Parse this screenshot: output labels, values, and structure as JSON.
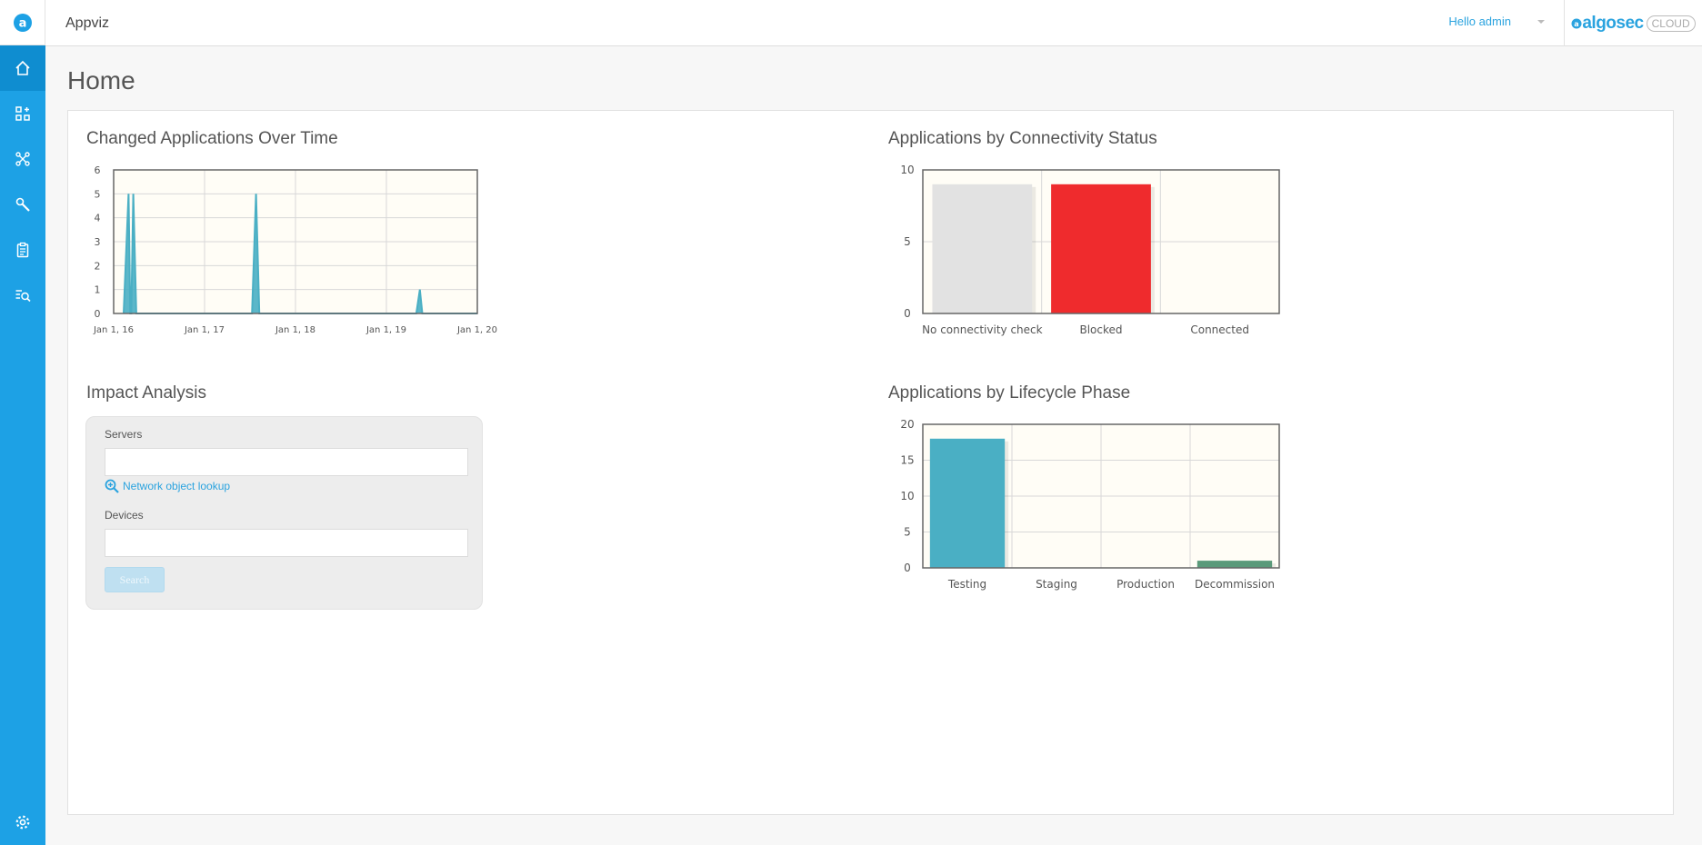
{
  "app": {
    "title": "Appviz"
  },
  "user": {
    "greeting": "Hello admin"
  },
  "brand": {
    "name": "algosec",
    "cloud": "CLOUD"
  },
  "sidebar": {
    "items": [
      {
        "icon": "home-icon",
        "active": true
      },
      {
        "icon": "applications-icon",
        "active": false
      },
      {
        "icon": "network-map-icon",
        "active": false
      },
      {
        "icon": "tools-icon",
        "active": false
      },
      {
        "icon": "clipboard-icon",
        "active": false
      },
      {
        "icon": "search-list-icon",
        "active": false
      }
    ],
    "bottom_icon": "gear-icon"
  },
  "page": {
    "title": "Home"
  },
  "widgets": {
    "changed_apps_title": "Changed Applications Over Time",
    "connectivity_title": "Applications by Connectivity Status",
    "impact_title": "Impact Analysis",
    "lifecycle_title": "Applications by Lifecycle Phase"
  },
  "impact": {
    "servers_label": "Servers",
    "servers_value": "",
    "lookup_label": "Network object lookup",
    "devices_label": "Devices",
    "devices_value": "",
    "search_label": "Search"
  },
  "colors": {
    "sidebar": "#1da1e5",
    "accent": "#2aa3df",
    "line": "#4aafc4",
    "blocked": "#ef2b2d",
    "no_check": "#e2e2e2",
    "testing": "#4aafc4",
    "decommission": "#5a9a7a",
    "plot_bg": "#fffdf6"
  },
  "chart_data": [
    {
      "type": "line",
      "title": "Changed Applications Over Time",
      "x_ticks": [
        "Jan 1, 16",
        "Jan 1, 17",
        "Jan 1, 18",
        "Jan 1, 19",
        "Jan 1, 20"
      ],
      "x_range": [
        "2016-01-01",
        "2020-01-01"
      ],
      "ylim": [
        0,
        6
      ],
      "y_ticks": [
        0,
        1,
        2,
        3,
        4,
        5,
        6
      ],
      "grid": true,
      "points": [
        {
          "x": "2016-02-10",
          "y": 0
        },
        {
          "x": "2016-03-01",
          "y": 5
        },
        {
          "x": "2016-03-08",
          "y": 0
        },
        {
          "x": "2016-03-12",
          "y": 0
        },
        {
          "x": "2016-03-20",
          "y": 5
        },
        {
          "x": "2016-04-01",
          "y": 0
        },
        {
          "x": "2017-07-10",
          "y": 0
        },
        {
          "x": "2017-07-26",
          "y": 5
        },
        {
          "x": "2017-08-08",
          "y": 0
        },
        {
          "x": "2019-05-01",
          "y": 0
        },
        {
          "x": "2019-05-15",
          "y": 1
        },
        {
          "x": "2019-05-25",
          "y": 0
        },
        {
          "x": "2020-01-01",
          "y": 0
        }
      ]
    },
    {
      "type": "bar",
      "title": "Applications by Connectivity Status",
      "categories": [
        "No connectivity check",
        "Blocked",
        "Connected"
      ],
      "values": [
        9,
        9,
        0
      ],
      "ylim": [
        0,
        10
      ],
      "y_ticks": [
        0,
        5,
        10
      ],
      "grid": true
    },
    {
      "type": "bar",
      "title": "Applications by Lifecycle Phase",
      "categories": [
        "Testing",
        "Staging",
        "Production",
        "Decommission"
      ],
      "values": [
        18,
        0,
        0,
        1
      ],
      "ylim": [
        0,
        20
      ],
      "y_ticks": [
        0,
        5,
        10,
        15,
        20
      ],
      "grid": true
    }
  ]
}
